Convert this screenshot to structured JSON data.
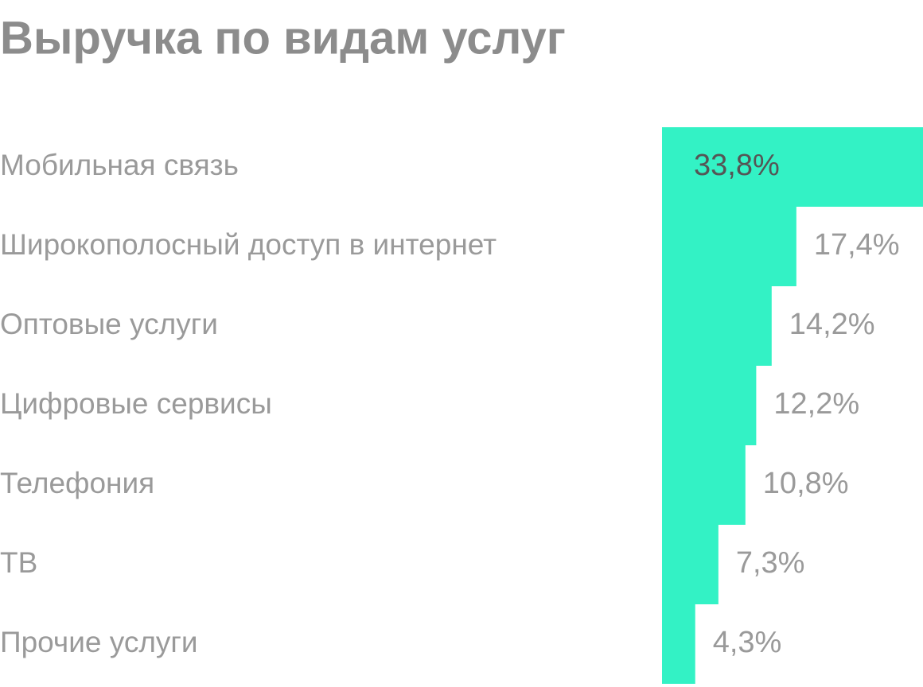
{
  "chart_data": {
    "type": "bar",
    "orientation": "horizontal",
    "title": "Выручка по видам услуг",
    "categories": [
      "Мобильная связь",
      "Широкополосный доступ в интернет",
      "Оптовые услуги",
      "Цифровые сервисы",
      "Телефония",
      "ТВ",
      "Прочие услуги"
    ],
    "values": [
      33.8,
      17.4,
      14.2,
      12.2,
      10.8,
      7.3,
      4.3
    ],
    "value_labels": [
      "33,8%",
      "17,4%",
      "14,2%",
      "12,2%",
      "10,8%",
      "7,3%",
      "4,3%"
    ],
    "color": "#33f2c5"
  }
}
